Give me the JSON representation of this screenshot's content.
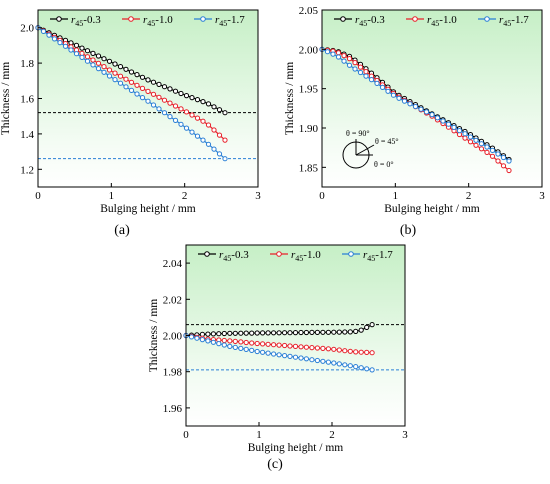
{
  "figure": {
    "panel_labels": [
      "(a)",
      "(b)",
      "(c)"
    ],
    "colors": {
      "black": "#000000",
      "red": "#e8202a",
      "blue": "#2a7fd6",
      "bg_top": "#c9f0c9",
      "bg_bottom": "#ffffff"
    }
  },
  "chart_data": [
    {
      "type": "line",
      "panel": "(a)",
      "xlabel": "Bulging height / mm",
      "ylabel": "Thickness / mm",
      "xlim": [
        0,
        3
      ],
      "ylim": [
        1.1,
        2.1
      ],
      "xticks": [
        0,
        1,
        2,
        3
      ],
      "yticks": [
        1.2,
        1.4,
        1.6,
        1.8,
        2.0
      ],
      "ytick_decimals": 1,
      "legend": "top",
      "grid": false,
      "series": [
        {
          "name_main": "r",
          "name_sub": "45",
          "name_suffix": "-0.3",
          "color": "#000000",
          "x": [
            0,
            0.5,
            1.0,
            1.5,
            2.0,
            2.3,
            2.55
          ],
          "y": [
            2.0,
            1.905,
            1.805,
            1.705,
            1.62,
            1.575,
            1.52
          ]
        },
        {
          "name_main": "r",
          "name_sub": "45",
          "name_suffix": "-1.0",
          "color": "#e8202a",
          "x": [
            0,
            0.5,
            1.0,
            1.5,
            2.0,
            2.3,
            2.55
          ],
          "y": [
            2.0,
            1.88,
            1.755,
            1.64,
            1.53,
            1.46,
            1.365
          ]
        },
        {
          "name_main": "r",
          "name_sub": "45",
          "name_suffix": "-1.7",
          "color": "#2a7fd6",
          "x": [
            0,
            0.5,
            1.0,
            1.5,
            2.0,
            2.3,
            2.55
          ],
          "y": [
            2.0,
            1.86,
            1.72,
            1.585,
            1.44,
            1.35,
            1.26
          ]
        }
      ],
      "reference_lines": [
        {
          "y": 1.52,
          "color": "#000000"
        },
        {
          "y": 1.26,
          "color": "#2a7fd6"
        }
      ]
    },
    {
      "type": "line",
      "panel": "(b)",
      "xlabel": "Bulging height / mm",
      "ylabel": "Thickness / mm",
      "xlim": [
        0,
        3
      ],
      "ylim": [
        1.825,
        2.05
      ],
      "xticks": [
        0,
        1,
        2,
        3
      ],
      "yticks": [
        1.85,
        1.9,
        1.95,
        2.0,
        2.05
      ],
      "ytick_decimals": 2,
      "legend": "top",
      "grid": false,
      "series": [
        {
          "name_main": "r",
          "name_sub": "45",
          "name_suffix": "-0.3",
          "color": "#000000",
          "x": [
            0,
            0.2,
            0.4,
            0.7,
            1.0,
            1.5,
            2.0,
            2.3,
            2.55
          ],
          "y": [
            2.0,
            1.998,
            1.99,
            1.968,
            1.944,
            1.918,
            1.893,
            1.876,
            1.86
          ]
        },
        {
          "name_main": "r",
          "name_sub": "45",
          "name_suffix": "-1.0",
          "color": "#e8202a",
          "x": [
            0,
            0.2,
            0.4,
            0.7,
            1.0,
            1.5,
            2.0,
            2.3,
            2.55
          ],
          "y": [
            2.0,
            1.997,
            1.987,
            1.964,
            1.942,
            1.915,
            1.884,
            1.866,
            1.846
          ]
        },
        {
          "name_main": "r",
          "name_sub": "45",
          "name_suffix": "-1.7",
          "color": "#2a7fd6",
          "x": [
            0,
            0.2,
            0.4,
            0.7,
            1.0,
            1.5,
            2.0,
            2.3,
            2.55
          ],
          "y": [
            2.0,
            1.992,
            1.978,
            1.96,
            1.94,
            1.917,
            1.89,
            1.873,
            1.858
          ]
        }
      ],
      "reference_lines": [],
      "inset": {
        "labels": [
          "θ = 90°",
          "θ = 45°",
          "θ = 0°"
        ]
      }
    },
    {
      "type": "line",
      "panel": "(c)",
      "xlabel": "Bulging height / mm",
      "ylabel": "Thickness / mm",
      "xlim": [
        0,
        3
      ],
      "ylim": [
        1.95,
        2.05
      ],
      "xticks": [
        0,
        1,
        2,
        3
      ],
      "yticks": [
        1.96,
        1.98,
        2.0,
        2.02,
        2.04
      ],
      "ytick_decimals": 2,
      "legend": "top",
      "grid": false,
      "series": [
        {
          "name_main": "r",
          "name_sub": "45",
          "name_suffix": "-0.3",
          "color": "#000000",
          "x": [
            0,
            0.3,
            0.6,
            1.0,
            1.5,
            2.0,
            2.3,
            2.4,
            2.55
          ],
          "y": [
            2.0,
            2.0008,
            2.0012,
            2.0014,
            2.0016,
            2.0018,
            2.002,
            2.003,
            2.006
          ]
        },
        {
          "name_main": "r",
          "name_sub": "45",
          "name_suffix": "-1.0",
          "color": "#e8202a",
          "x": [
            0,
            0.3,
            0.6,
            1.0,
            1.5,
            2.0,
            2.3,
            2.55
          ],
          "y": [
            2.0,
            1.998,
            1.997,
            1.9955,
            1.994,
            1.9925,
            1.991,
            1.9905
          ]
        },
        {
          "name_main": "r",
          "name_sub": "45",
          "name_suffix": "-1.7",
          "color": "#2a7fd6",
          "x": [
            0,
            0.3,
            0.6,
            1.0,
            1.5,
            2.0,
            2.3,
            2.55
          ],
          "y": [
            2.0,
            1.997,
            1.994,
            1.991,
            1.988,
            1.985,
            1.983,
            1.981
          ]
        }
      ],
      "reference_lines": [
        {
          "y": 2.006,
          "color": "#000000"
        },
        {
          "y": 1.981,
          "color": "#2a7fd6"
        }
      ]
    }
  ]
}
